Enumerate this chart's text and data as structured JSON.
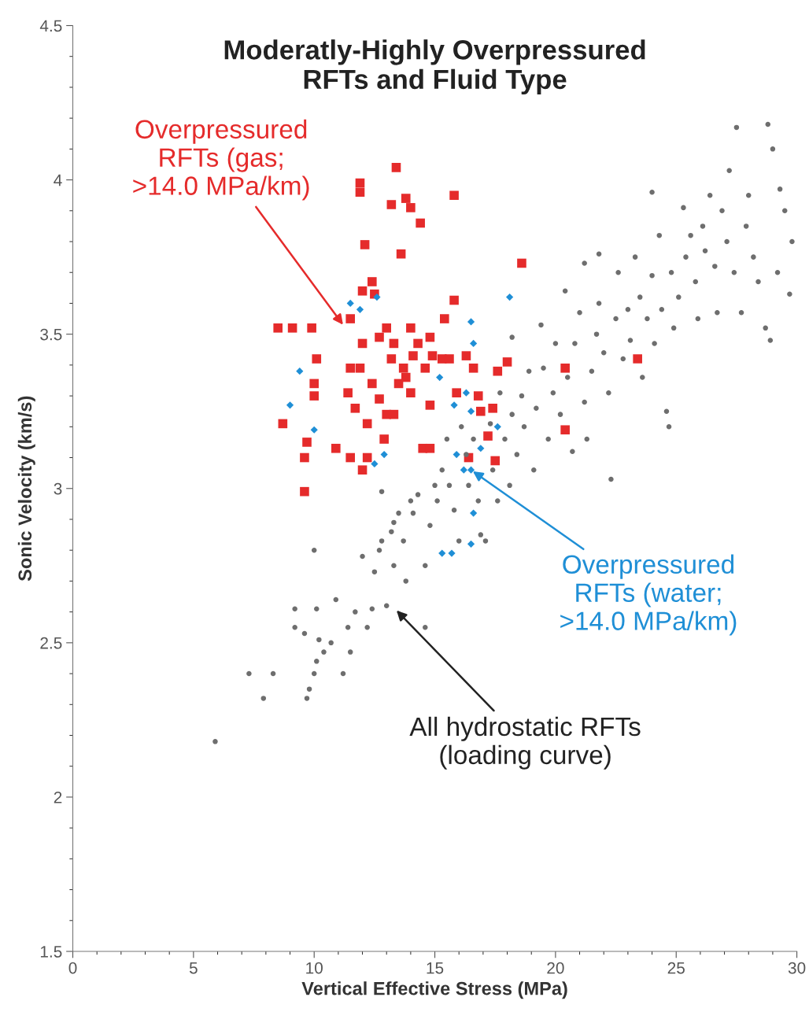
{
  "chart_data": {
    "type": "scatter",
    "title": "Moderatly-Highly Overpressured\nRFTs and Fluid Type",
    "xlabel": "Vertical Effective Stress (MPa)",
    "ylabel": "Sonic Velocity (km/s)",
    "xlim": [
      0,
      30
    ],
    "xticks": [
      0,
      5,
      10,
      15,
      20,
      25,
      30
    ],
    "ylim": [
      1.5,
      4.5
    ],
    "yticks": [
      1.5,
      2,
      2.5,
      3,
      3.5,
      4,
      4.5
    ],
    "grid": false,
    "series": [
      {
        "color": "#e52b2b",
        "marker": "square",
        "x": [
          8.5,
          9.1,
          9.9,
          8.7,
          9.6,
          9.6,
          9.7,
          10.0,
          10.0,
          10.1,
          10.9,
          11.5,
          11.5,
          11.9,
          11.9,
          12.1,
          12.0,
          12.4,
          12.0,
          12.2,
          12.5,
          12.7,
          13.4,
          13.2,
          13.8,
          14.0,
          14.4,
          13.6,
          15.8,
          15.8,
          15.4,
          14.8,
          14.0,
          13.3,
          13.0,
          12.0,
          11.9,
          11.5,
          11.4,
          11.7,
          12.2,
          12.7,
          13.0,
          13.3,
          13.7,
          13.8,
          14.1,
          14.6,
          14.8,
          14.9,
          15.3,
          15.6,
          15.9,
          16.3,
          16.6,
          16.8,
          16.9,
          17.4,
          17.6,
          18.0,
          18.6,
          17.2,
          17.5,
          16.4,
          14.5,
          14.8,
          20.4,
          20.4,
          23.4,
          12.9,
          14.0,
          12.4,
          14.3,
          13.5,
          13.2
        ],
        "values": [
          3.52,
          3.52,
          3.52,
          3.21,
          3.1,
          2.99,
          3.15,
          3.34,
          3.3,
          3.42,
          3.13,
          3.1,
          3.55,
          3.99,
          3.96,
          3.79,
          3.64,
          3.67,
          3.06,
          3.1,
          3.63,
          3.49,
          4.04,
          3.92,
          3.94,
          3.91,
          3.86,
          3.76,
          3.95,
          3.61,
          3.55,
          3.49,
          3.52,
          3.47,
          3.52,
          3.47,
          3.39,
          3.39,
          3.31,
          3.26,
          3.21,
          3.29,
          3.24,
          3.24,
          3.39,
          3.36,
          3.43,
          3.39,
          3.27,
          3.43,
          3.42,
          3.42,
          3.31,
          3.43,
          3.39,
          3.3,
          3.25,
          3.26,
          3.38,
          3.41,
          3.73,
          3.17,
          3.09,
          3.1,
          3.13,
          3.13,
          3.39,
          3.19,
          3.42,
          3.16,
          3.31,
          3.34,
          3.47,
          3.34,
          3.42
        ]
      },
      {
        "color": "#1f8fd6",
        "marker": "diamond",
        "x": [
          11.5,
          11.9,
          12.6,
          9.0,
          9.4,
          10.0,
          12.5,
          12.9,
          15.2,
          15.8,
          16.3,
          16.5,
          16.6,
          16.5,
          15.9,
          16.2,
          16.5,
          16.6,
          16.5,
          15.7,
          15.3,
          16.9,
          17.6,
          18.1
        ],
        "values": [
          3.6,
          3.58,
          3.62,
          3.27,
          3.38,
          3.19,
          3.08,
          3.11,
          3.36,
          3.27,
          3.31,
          3.54,
          3.47,
          3.25,
          3.11,
          3.06,
          3.06,
          2.92,
          2.82,
          2.79,
          2.79,
          3.13,
          3.2,
          3.62
        ]
      },
      {
        "color": "#6e6e6e",
        "marker": "circle",
        "x": [
          5.9,
          7.3,
          7.9,
          8.3,
          9.2,
          9.2,
          9.6,
          9.7,
          9.8,
          10.0,
          10.1,
          10.2,
          10.4,
          10.7,
          10.9,
          10.0,
          10.1,
          11.2,
          11.5,
          11.7,
          11.4,
          12.0,
          12.2,
          12.4,
          12.5,
          12.7,
          12.8,
          13.0,
          12.8,
          13.2,
          13.3,
          13.5,
          13.3,
          13.7,
          14.0,
          14.1,
          14.3,
          13.8,
          14.6,
          14.6,
          14.8,
          15.0,
          15.1,
          15.3,
          15.5,
          15.6,
          15.8,
          16.0,
          16.1,
          16.3,
          16.4,
          16.6,
          16.8,
          16.9,
          17.1,
          17.3,
          17.4,
          17.6,
          17.7,
          17.9,
          18.1,
          18.2,
          18.2,
          18.4,
          18.6,
          18.7,
          18.9,
          19.1,
          19.2,
          19.4,
          19.5,
          19.7,
          19.9,
          20.0,
          20.2,
          20.4,
          20.5,
          20.7,
          20.8,
          21.0,
          21.2,
          21.3,
          21.5,
          21.7,
          21.8,
          22.0,
          22.2,
          22.3,
          22.5,
          22.6,
          22.8,
          23.0,
          23.1,
          23.3,
          23.5,
          23.6,
          23.8,
          24.0,
          24.1,
          24.3,
          24.4,
          24.6,
          24.7,
          24.8,
          24.9,
          25.1,
          25.3,
          25.4,
          25.6,
          25.8,
          25.9,
          26.1,
          26.2,
          26.4,
          26.6,
          26.7,
          26.9,
          27.1,
          27.2,
          27.4,
          27.5,
          27.7,
          27.9,
          28.0,
          28.2,
          28.4,
          28.7,
          28.8,
          28.9,
          29.0,
          29.2,
          29.3,
          29.5,
          29.7,
          29.8,
          24.0,
          21.8,
          21.2
        ],
        "values": [
          2.18,
          2.4,
          2.32,
          2.4,
          2.61,
          2.55,
          2.53,
          2.32,
          2.35,
          2.4,
          2.61,
          2.51,
          2.47,
          2.5,
          2.64,
          2.8,
          2.44,
          2.4,
          2.47,
          2.6,
          2.55,
          2.78,
          2.55,
          2.61,
          2.73,
          2.8,
          2.83,
          2.62,
          2.99,
          2.86,
          2.89,
          2.92,
          2.75,
          2.83,
          2.96,
          2.92,
          2.98,
          2.7,
          2.55,
          2.75,
          2.88,
          3.01,
          2.96,
          3.06,
          3.16,
          3.01,
          2.93,
          2.83,
          3.2,
          3.11,
          3.01,
          3.16,
          2.96,
          2.85,
          2.83,
          3.21,
          3.06,
          2.96,
          3.31,
          3.16,
          3.01,
          3.49,
          3.24,
          3.11,
          3.3,
          3.2,
          3.38,
          3.06,
          3.26,
          3.53,
          3.39,
          3.16,
          3.31,
          3.47,
          3.24,
          3.64,
          3.36,
          3.12,
          3.47,
          3.57,
          3.28,
          3.16,
          3.38,
          3.5,
          3.6,
          3.44,
          3.31,
          3.03,
          3.55,
          3.7,
          3.42,
          3.58,
          3.48,
          3.75,
          3.62,
          3.36,
          3.55,
          3.69,
          3.47,
          3.82,
          3.58,
          3.25,
          3.2,
          3.7,
          3.52,
          3.62,
          3.91,
          3.75,
          3.82,
          3.67,
          3.55,
          3.85,
          3.77,
          3.95,
          3.72,
          3.57,
          3.9,
          3.8,
          4.03,
          3.7,
          4.17,
          3.57,
          3.85,
          3.95,
          3.75,
          3.67,
          3.52,
          4.18,
          3.48,
          4.1,
          3.7,
          3.97,
          3.9,
          3.63,
          3.8,
          3.96,
          3.76,
          3.73
        ]
      }
    ],
    "annotations": [
      "Overpressured\nRFTs (gas;\n>14.0 MPa/km)",
      {
        "text": "Overpressured\nRFTs (water;\n>14.0 MPa/km)",
        "x": 16.5,
        "y": 3.06
      },
      "All hydrostatic RFTs\n(loading curve)"
    ]
  }
}
